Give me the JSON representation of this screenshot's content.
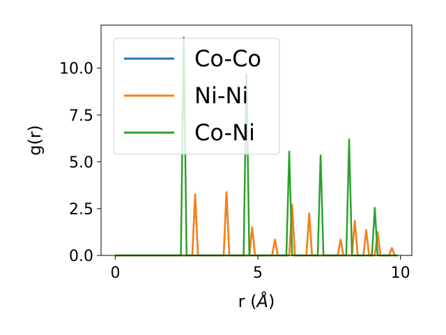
{
  "chart_data": {
    "type": "line",
    "xlabel": "r (",
    "xlabel_unit": "Å",
    "xlabel_close": ")",
    "ylabel": "g(r)",
    "xlim": [
      -0.5,
      10.4
    ],
    "ylim": [
      0,
      12.3
    ],
    "xticks": [
      0,
      5,
      10
    ],
    "yticks": [
      0.0,
      2.5,
      5.0,
      7.5,
      10.0
    ],
    "xtick_labels": [
      "0",
      "5",
      "10"
    ],
    "ytick_labels": [
      "0.0",
      "2.5",
      "5.0",
      "7.5",
      "10.0"
    ],
    "grid": false,
    "legend_position": "top-left",
    "peak_width": 0.1,
    "x_range": [
      0,
      9.9
    ],
    "series": [
      {
        "name": "Co-Co",
        "color": "#1f77b4",
        "peaks": [
          [
            2.8,
            3.25
          ],
          [
            3.9,
            3.38
          ],
          [
            4.8,
            1.5
          ],
          [
            5.6,
            0.85
          ],
          [
            6.2,
            2.7
          ],
          [
            6.8,
            2.25
          ],
          [
            7.9,
            0.85
          ],
          [
            8.4,
            1.85
          ],
          [
            8.8,
            1.35
          ],
          [
            9.2,
            1.25
          ],
          [
            9.7,
            0.4
          ]
        ]
      },
      {
        "name": "Ni-Ni",
        "color": "#ff7f0e",
        "peaks": [
          [
            2.8,
            3.25
          ],
          [
            3.9,
            3.38
          ],
          [
            4.8,
            1.5
          ],
          [
            5.6,
            0.85
          ],
          [
            6.2,
            2.7
          ],
          [
            6.8,
            2.25
          ],
          [
            7.9,
            0.85
          ],
          [
            8.4,
            1.85
          ],
          [
            8.8,
            1.35
          ],
          [
            9.2,
            1.25
          ],
          [
            9.7,
            0.4
          ]
        ]
      },
      {
        "name": "Co-Ni",
        "color": "#2ca02c",
        "peaks": [
          [
            2.4,
            11.65
          ],
          [
            4.6,
            9.7
          ],
          [
            6.1,
            5.55
          ],
          [
            7.2,
            5.35
          ],
          [
            8.2,
            6.2
          ],
          [
            9.1,
            2.55
          ]
        ]
      }
    ]
  }
}
